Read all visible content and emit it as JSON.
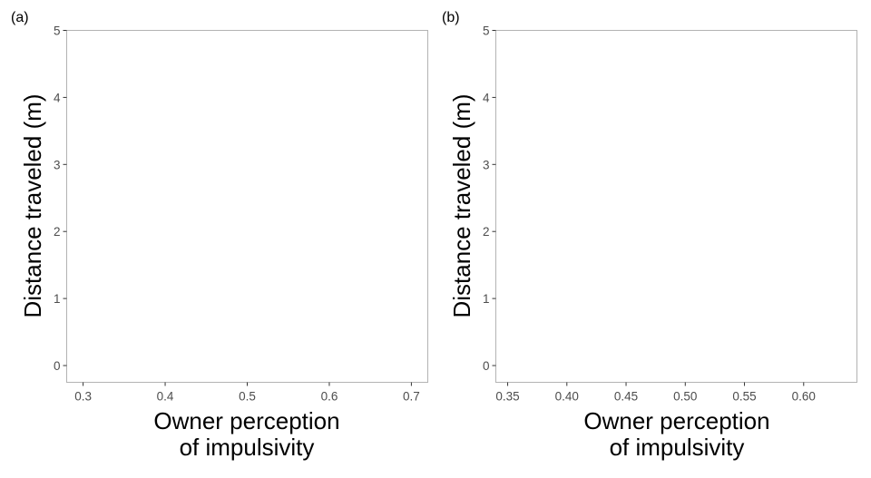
{
  "chart_data": [
    {
      "type": "scatter",
      "panel_label": "(a)",
      "xlabel_lines": [
        "Owner perception",
        "of impulsivity"
      ],
      "ylabel": "Distance traveled (m)",
      "xlim": [
        0.28,
        0.72
      ],
      "ylim": [
        -0.25,
        5.0
      ],
      "xticks": [
        0.3,
        0.4,
        0.5,
        0.6,
        0.7
      ],
      "xtick_labels": [
        "0.3",
        "0.4",
        "0.5",
        "0.6",
        "0.7"
      ],
      "yticks": [
        0,
        1,
        2,
        3,
        4,
        5
      ],
      "ytick_labels": [
        "0",
        "1",
        "2",
        "3",
        "4",
        "5"
      ],
      "grid": false,
      "series": []
    },
    {
      "type": "scatter",
      "panel_label": "(b)",
      "xlabel_lines": [
        "Owner perception",
        "of impulsivity"
      ],
      "ylabel": "Distance traveled (m)",
      "xlim": [
        0.34,
        0.645
      ],
      "ylim": [
        -0.25,
        5.0
      ],
      "xticks": [
        0.35,
        0.4,
        0.45,
        0.5,
        0.55,
        0.6
      ],
      "xtick_labels": [
        "0.35",
        "0.40",
        "0.45",
        "0.50",
        "0.55",
        "0.60"
      ],
      "yticks": [
        0,
        1,
        2,
        3,
        4,
        5
      ],
      "ytick_labels": [
        "0",
        "1",
        "2",
        "3",
        "4",
        "5"
      ],
      "grid": false,
      "series": []
    }
  ]
}
